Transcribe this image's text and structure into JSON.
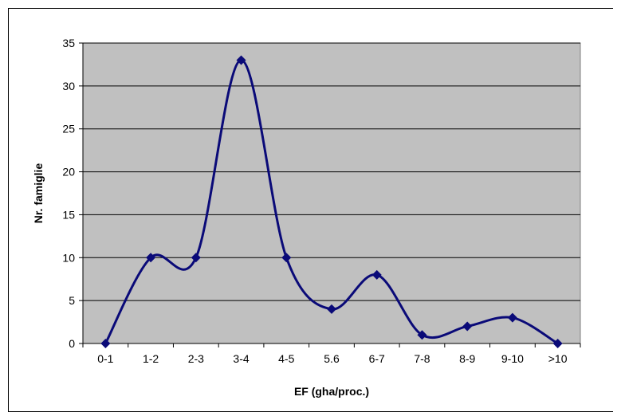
{
  "chart_data": {
    "type": "line",
    "smooth": true,
    "categories": [
      "0-1",
      "1-2",
      "2-3",
      "3-4",
      "4-5",
      "5.6",
      "6-7",
      "7-8",
      "8-9",
      "9-10",
      ">10"
    ],
    "series": [
      {
        "values": [
          0,
          10,
          10,
          33,
          10,
          4,
          8,
          1,
          2,
          3,
          0
        ]
      }
    ],
    "xlabel": "EF (gha/proc.)",
    "ylabel": "Nr. famiglie",
    "ylim": [
      0,
      35
    ],
    "yticks": [
      0,
      5,
      10,
      15,
      20,
      25,
      30,
      35
    ],
    "grid": true,
    "legend": "none",
    "colors": {
      "plot_bg": "#c0c0c0",
      "line": "#0a0a78",
      "grid": "#000000"
    }
  }
}
